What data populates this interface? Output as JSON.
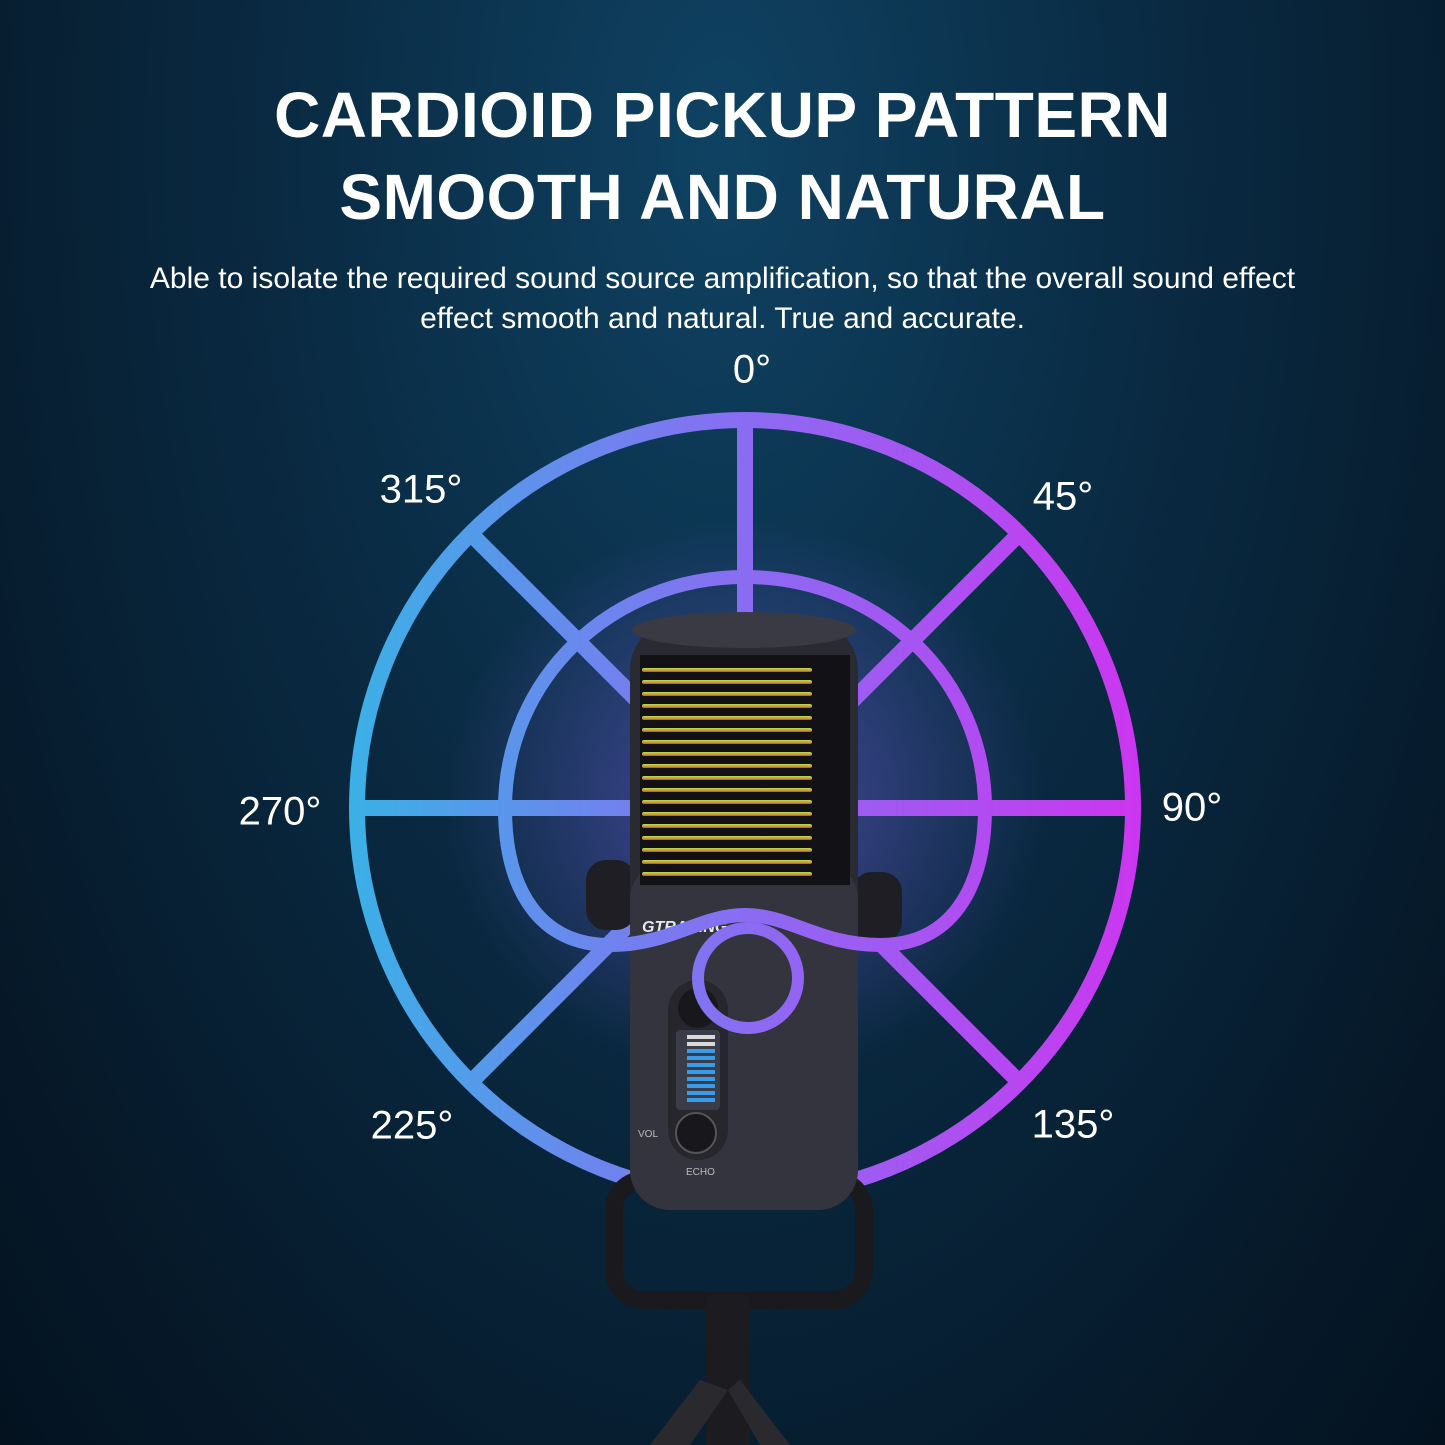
{
  "heading": {
    "line1": "CARDIOID PICKUP PATTERN",
    "line2": "SMOOTH AND NATURAL"
  },
  "description": "Able to isolate the required sound source amplification, so that the overall sound effect effect smooth and natural. True and accurate.",
  "angles": {
    "a0": "0°",
    "a45": "45°",
    "a90": "90°",
    "a135": "135°",
    "a225": "225°",
    "a270": "270°",
    "a315": "315°"
  },
  "microphone": {
    "brand": "GTRACING",
    "vol_label": "VOL",
    "echo_label": "ECHO"
  },
  "colors": {
    "gradient_left": "#3bb0e6",
    "gradient_mid": "#8a6cf2",
    "gradient_right": "#cc36f0"
  }
}
